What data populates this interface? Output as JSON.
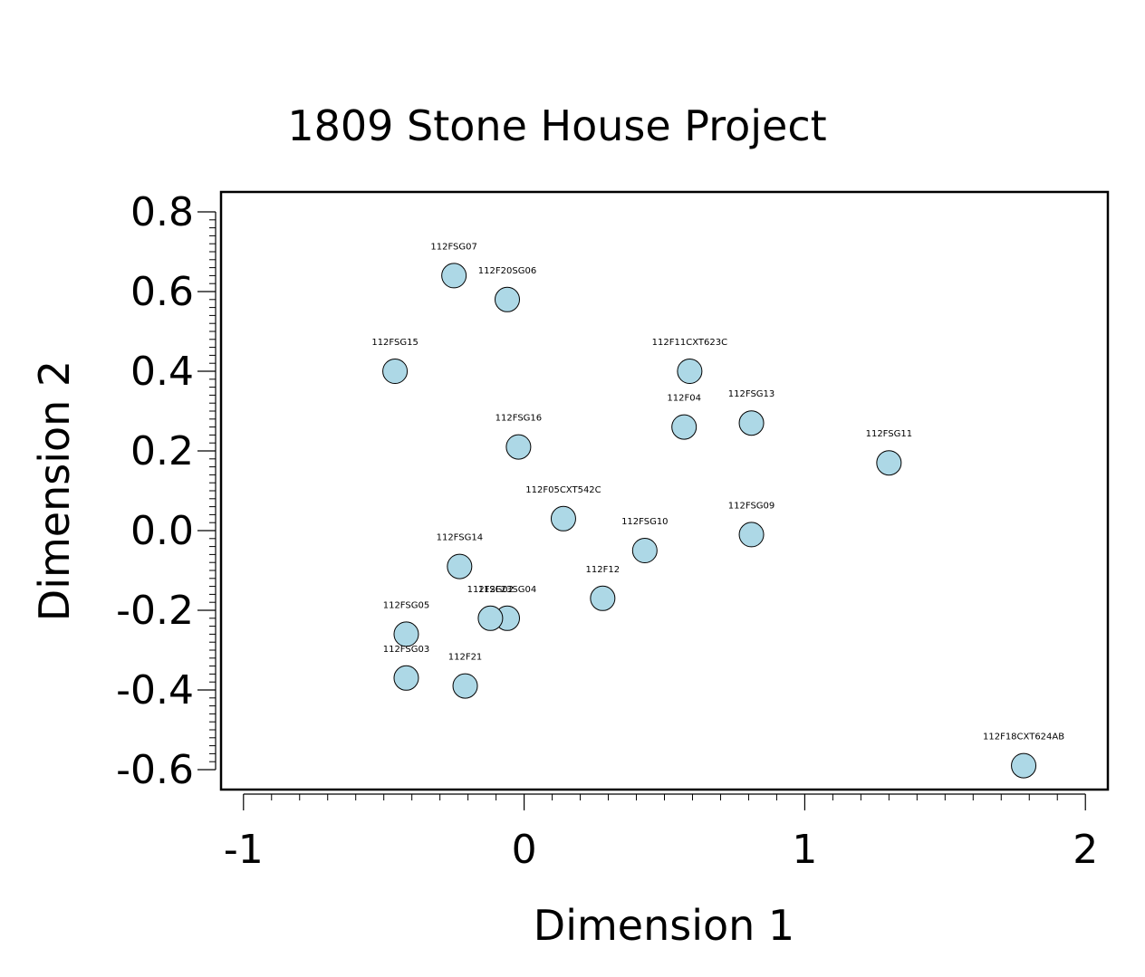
{
  "chart_data": {
    "type": "scatter",
    "title": "1809 Stone House Project",
    "xlabel": "Dimension 1",
    "ylabel": "Dimension 2",
    "xlim": [
      -1.08,
      2.08
    ],
    "ylim": [
      -0.65,
      0.85
    ],
    "xticks": [
      -1,
      0,
      1,
      2
    ],
    "xtick_labels": [
      "-1",
      "0",
      "1",
      "2"
    ],
    "yticks": [
      -0.6,
      -0.4,
      -0.2,
      0.0,
      0.2,
      0.4,
      0.6,
      0.8
    ],
    "ytick_labels": [
      "-0.6",
      "-0.4",
      "-0.2",
      "0.0",
      "0.2",
      "0.4",
      "0.6",
      "0.8"
    ],
    "grid": false,
    "legend": "none",
    "marker_color": "#add8e6",
    "points": [
      {
        "label": "112FSG07",
        "x": -0.25,
        "y": 0.64
      },
      {
        "label": "112F20SG06",
        "x": -0.06,
        "y": 0.58
      },
      {
        "label": "112FSG15",
        "x": -0.46,
        "y": 0.4
      },
      {
        "label": "112F11CXT623C",
        "x": 0.59,
        "y": 0.4
      },
      {
        "label": "112F04",
        "x": 0.57,
        "y": 0.26
      },
      {
        "label": "112FSG13",
        "x": 0.81,
        "y": 0.27
      },
      {
        "label": "112FSG16",
        "x": -0.02,
        "y": 0.21
      },
      {
        "label": "112FSG11",
        "x": 1.3,
        "y": 0.17
      },
      {
        "label": "112F05CXT542C",
        "x": 0.14,
        "y": 0.03
      },
      {
        "label": "112FSG09",
        "x": 0.81,
        "y": -0.01
      },
      {
        "label": "112FSG10",
        "x": 0.43,
        "y": -0.05
      },
      {
        "label": "112FSG14",
        "x": -0.23,
        "y": -0.09
      },
      {
        "label": "112F12",
        "x": 0.28,
        "y": -0.17
      },
      {
        "label": "112F23SG04",
        "x": -0.06,
        "y": -0.22
      },
      {
        "label": "112FSG02",
        "x": -0.12,
        "y": -0.22
      },
      {
        "label": "112FSG05",
        "x": -0.42,
        "y": -0.26
      },
      {
        "label": "112FSG03",
        "x": -0.42,
        "y": -0.37
      },
      {
        "label": "112F21",
        "x": -0.21,
        "y": -0.39
      },
      {
        "label": "112F18CXT624AB",
        "x": 1.78,
        "y": -0.59
      }
    ]
  }
}
